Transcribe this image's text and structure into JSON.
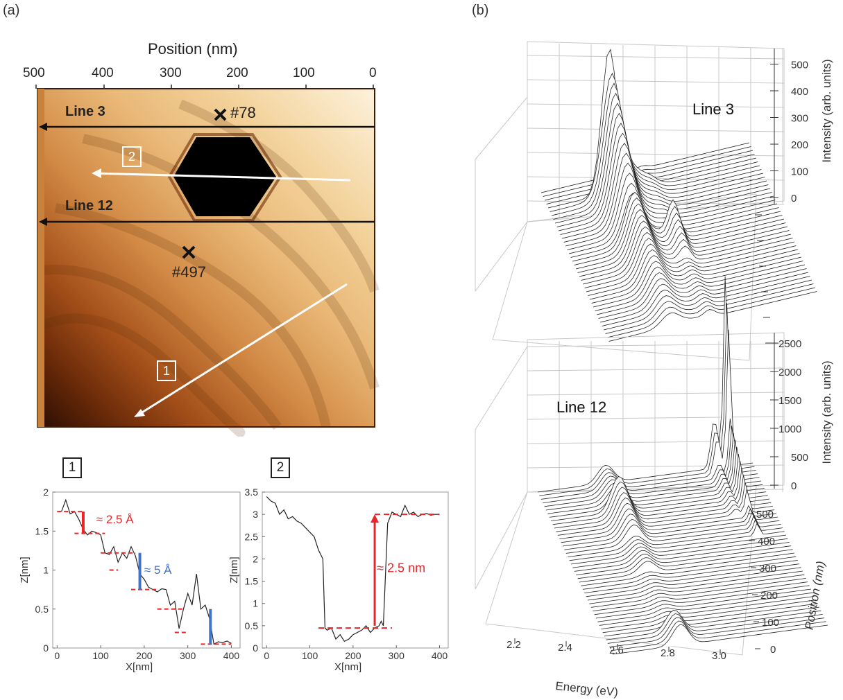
{
  "panel_labels": {
    "a": "(a)",
    "b": "(b)"
  },
  "afm": {
    "xlabel": "Position (nm)",
    "ticks": [
      "500",
      "400",
      "300",
      "200",
      "100",
      "0"
    ],
    "line3_label": "Line 3",
    "line12_label": "Line 12",
    "marker1": "#78",
    "marker2": "#497",
    "arrow1": "1",
    "arrow2": "2",
    "colors": {
      "dark": "#3a1405",
      "mid": "#b45a18",
      "light": "#f6dcaa",
      "pale": "#fdf2dc"
    }
  },
  "chart_data": [
    {
      "type": "line",
      "panel": "1",
      "xlabel": "X[nm]",
      "ylabel": "Z[nm]",
      "xlim": [
        -10,
        420
      ],
      "ylim": [
        0,
        2
      ],
      "xticks": [
        0,
        100,
        200,
        300,
        400
      ],
      "yticks": [
        0,
        0.5,
        1,
        1.5,
        2
      ],
      "ytick_labels": [
        "0",
        "0.5",
        "1",
        "1.5",
        "2"
      ],
      "series": [
        {
          "values_x": [
            10,
            20,
            30,
            40,
            50,
            60,
            70,
            80,
            90,
            100,
            110,
            120,
            130,
            140,
            150,
            160,
            170,
            180,
            190,
            200,
            210,
            220,
            230,
            240,
            250,
            260,
            270,
            280,
            290,
            300,
            310,
            320,
            330,
            340,
            350,
            360,
            370,
            380,
            390,
            400
          ],
          "values_y": [
            1.75,
            1.9,
            1.72,
            1.75,
            1.65,
            1.52,
            1.45,
            1.5,
            1.48,
            1.45,
            1.22,
            1.2,
            1.3,
            1.1,
            1.22,
            1.15,
            1.3,
            1.18,
            0.95,
            0.88,
            0.78,
            0.75,
            0.72,
            0.76,
            0.75,
            0.55,
            0.6,
            0.25,
            0.5,
            0.7,
            0.55,
            0.95,
            0.5,
            0.55,
            0.38,
            0.05,
            0.08,
            0.07,
            0.09,
            0.06
          ]
        }
      ],
      "annotations": [
        {
          "text": "≈ 2.5 Å",
          "color": "#e8262a"
        },
        {
          "text": "≈ 5 Å",
          "color": "#4472c4"
        }
      ]
    },
    {
      "type": "line",
      "panel": "2",
      "xlabel": "X[nm]",
      "ylabel": "Z[nm]",
      "xlim": [
        -10,
        420
      ],
      "ylim": [
        0,
        3.5
      ],
      "xticks": [
        0,
        100,
        200,
        300,
        400
      ],
      "yticks": [
        0,
        0.5,
        1,
        1.5,
        2,
        2.5,
        3,
        3.5
      ],
      "ytick_labels": [
        "0",
        "0.5",
        "1",
        "1.5",
        "2",
        "2.5",
        "3",
        "3.5"
      ],
      "series": [
        {
          "values_x": [
            0,
            10,
            20,
            30,
            40,
            50,
            60,
            70,
            80,
            90,
            100,
            110,
            120,
            130,
            135,
            140,
            150,
            160,
            170,
            180,
            190,
            200,
            210,
            220,
            230,
            240,
            250,
            260,
            265,
            270,
            280,
            290,
            300,
            310,
            320,
            330,
            340,
            350,
            360,
            370,
            380,
            390,
            400
          ],
          "values_y": [
            3.4,
            3.3,
            3.25,
            3.0,
            3.1,
            2.9,
            2.95,
            2.85,
            2.8,
            2.7,
            2.6,
            2.5,
            2.2,
            2.0,
            0.45,
            0.4,
            0.45,
            0.2,
            0.3,
            0.15,
            0.2,
            0.3,
            0.35,
            0.4,
            0.5,
            0.35,
            0.45,
            0.5,
            0.6,
            0.5,
            2.8,
            3.05,
            3.0,
            2.95,
            3.2,
            3.0,
            3.05,
            2.95,
            3.0,
            3.02,
            2.98,
            3.0,
            3.0
          ]
        }
      ],
      "annotations": [
        {
          "text": "≈ 2.5 nm",
          "color": "#e8262a"
        }
      ]
    },
    {
      "type": "line",
      "panel": "b-top",
      "title": "Line 3",
      "xlabel": "Energy (eV)",
      "ylabel": "Intensity (arb. units)",
      "zlim": [
        0,
        550
      ],
      "zticks": [
        0,
        100,
        200,
        300,
        400,
        500
      ],
      "peaks_eV": [
        2.38,
        2.56
      ]
    },
    {
      "type": "line",
      "panel": "b-bottom",
      "title": "Line 12",
      "xlabel": "Energy (eV)",
      "ylabel": "Intensity (arb. units)",
      "zlabel": "Position (nm)",
      "xlim": [
        2.1,
        3.05
      ],
      "xticks": [
        2.2,
        2.4,
        2.6,
        2.8,
        3.0
      ],
      "xtick_labels": [
        "2.2",
        "2.4",
        "2.6",
        "2.8",
        "3.0"
      ],
      "zlim": [
        0,
        2600
      ],
      "zticks": [
        0,
        500,
        1000,
        1500,
        2000,
        2500
      ],
      "position_ticks": [
        0,
        100,
        200,
        300,
        400,
        500
      ],
      "peaks_eV": [
        2.4,
        2.93
      ]
    }
  ]
}
